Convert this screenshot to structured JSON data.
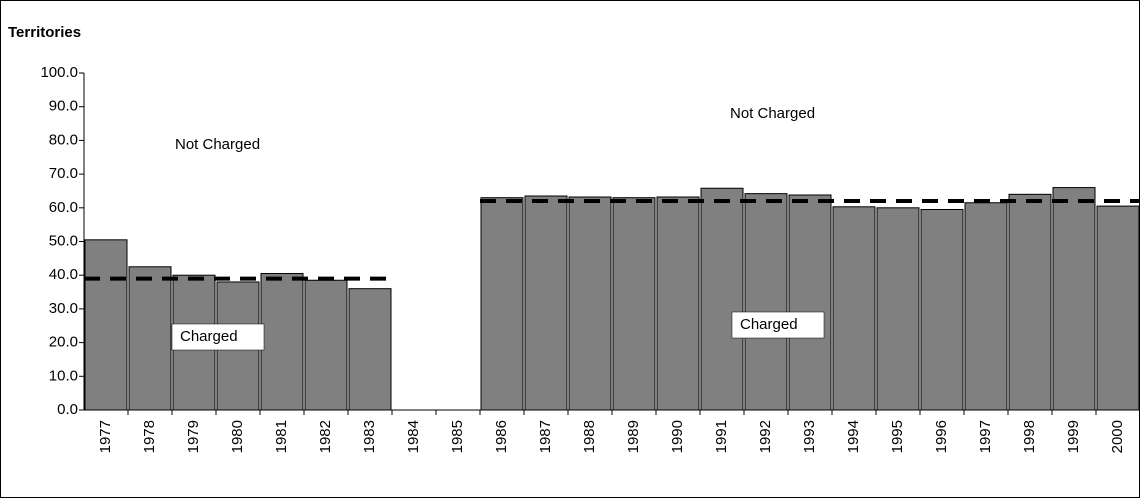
{
  "chart_data": {
    "type": "bar",
    "title": "Territories",
    "categories": [
      "1977",
      "1978",
      "1979",
      "1980",
      "1981",
      "1982",
      "1983",
      "1984",
      "1985",
      "1986",
      "1987",
      "1988",
      "1989",
      "1990",
      "1991",
      "1992",
      "1993",
      "1994",
      "1995",
      "1996",
      "1997",
      "1998",
      "1999",
      "2000"
    ],
    "series": [
      {
        "type": "bar",
        "color": "#808080",
        "values": [
          50.5,
          42.5,
          40.0,
          38.0,
          40.5,
          38.5,
          36.0,
          null,
          null,
          63.0,
          63.5,
          63.2,
          63.0,
          63.2,
          65.8,
          64.2,
          63.8,
          60.3,
          60.0,
          59.5,
          61.5,
          64.0,
          66.0,
          60.5
        ]
      },
      {
        "type": "line",
        "color": "#000000",
        "values": [
          39,
          39,
          39,
          39,
          39,
          39,
          39,
          null,
          null,
          62,
          62,
          62,
          62,
          62,
          62,
          62,
          62,
          62,
          62,
          62,
          62,
          62,
          62,
          62
        ]
      }
    ],
    "ylim": [
      0,
      100
    ],
    "yticks": [
      {
        "value": 0,
        "label": "0.0"
      },
      {
        "value": 10,
        "label": "10.0"
      },
      {
        "value": 20,
        "label": "20.0"
      },
      {
        "value": 30,
        "label": "30.0"
      },
      {
        "value": 40,
        "label": "40.0"
      },
      {
        "value": 50,
        "label": "50.0"
      },
      {
        "value": 60,
        "label": "60.0"
      },
      {
        "value": 70,
        "label": "70.0"
      },
      {
        "value": 80,
        "label": "80.0"
      },
      {
        "value": 90,
        "label": "90.0"
      },
      {
        "value": 100,
        "label": "100.0"
      }
    ],
    "annotations": [
      "Not Charged",
      "Not Charged",
      "Charged",
      "Charged"
    ]
  }
}
